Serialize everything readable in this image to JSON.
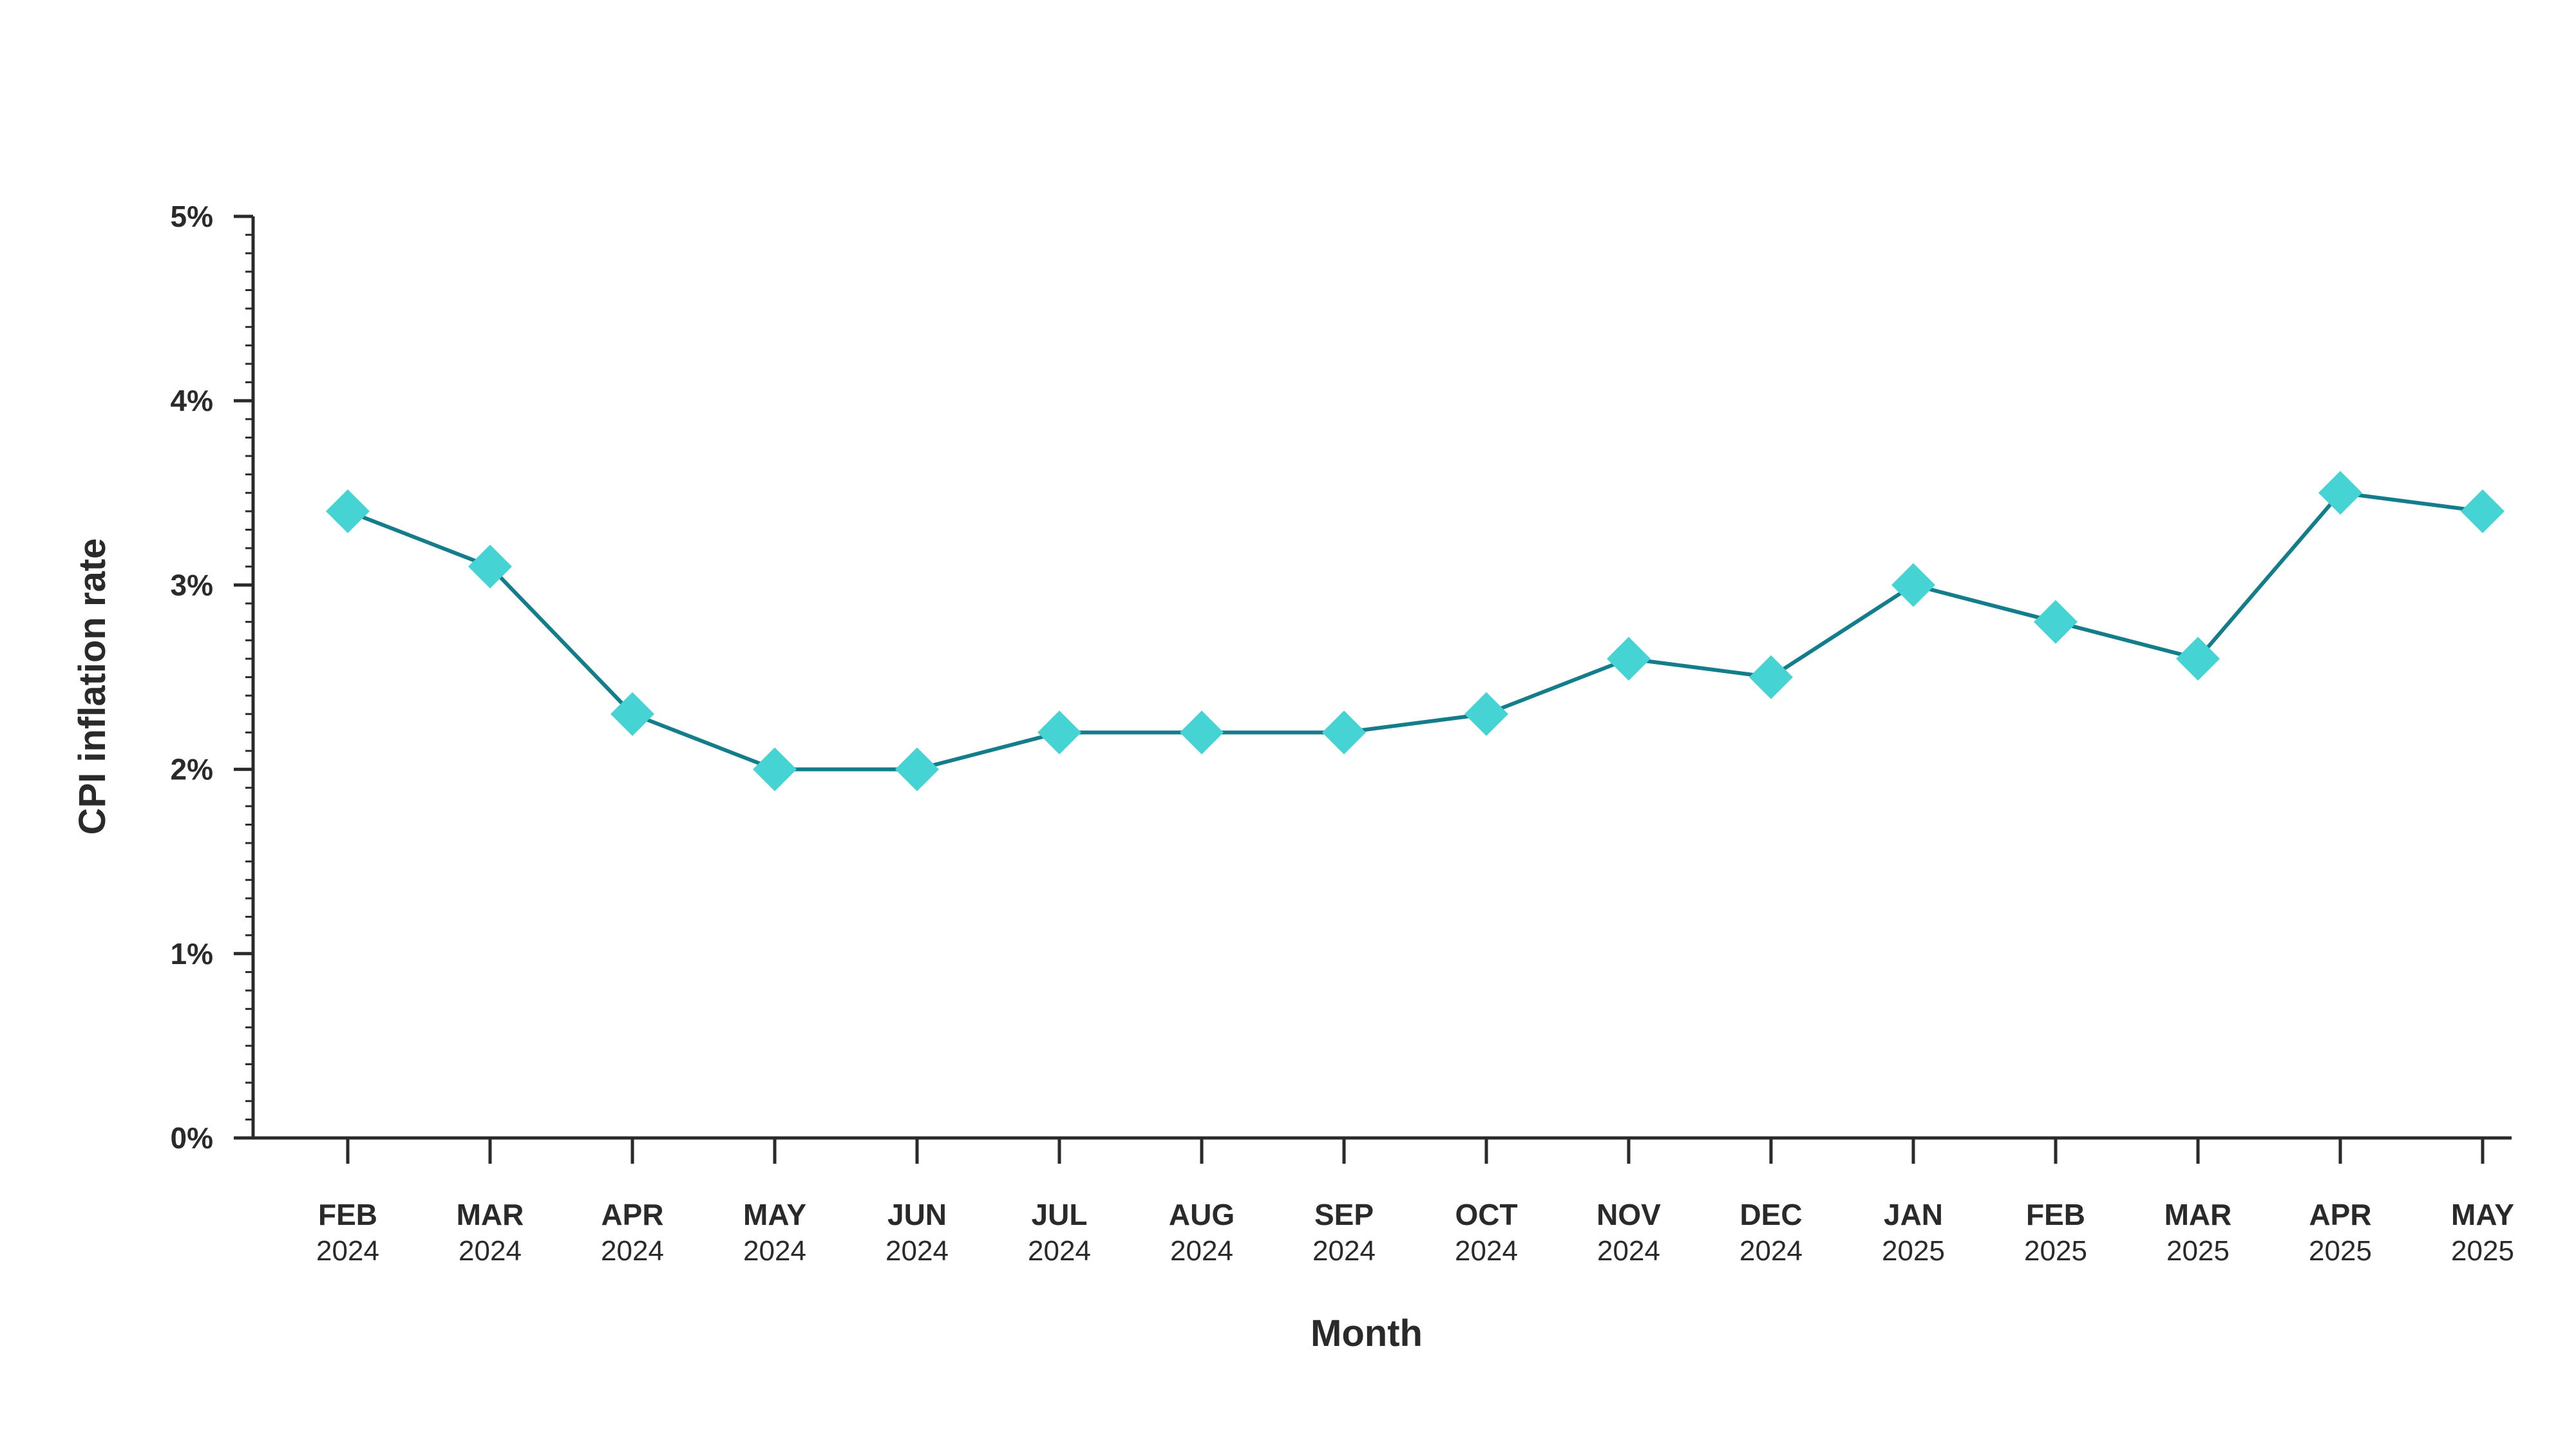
{
  "chart_data": {
    "type": "line",
    "title": "",
    "xlabel": "Month",
    "ylabel": "CPI inflation rate",
    "categories": [
      {
        "month": "FEB",
        "year": "2024"
      },
      {
        "month": "MAR",
        "year": "2024"
      },
      {
        "month": "APR",
        "year": "2024"
      },
      {
        "month": "MAY",
        "year": "2024"
      },
      {
        "month": "JUN",
        "year": "2024"
      },
      {
        "month": "JUL",
        "year": "2024"
      },
      {
        "month": "AUG",
        "year": "2024"
      },
      {
        "month": "SEP",
        "year": "2024"
      },
      {
        "month": "OCT",
        "year": "2024"
      },
      {
        "month": "NOV",
        "year": "2024"
      },
      {
        "month": "DEC",
        "year": "2024"
      },
      {
        "month": "JAN",
        "year": "2025"
      },
      {
        "month": "FEB",
        "year": "2025"
      },
      {
        "month": "MAR",
        "year": "2025"
      },
      {
        "month": "APR",
        "year": "2025"
      },
      {
        "month": "MAY",
        "year": "2025"
      }
    ],
    "series": [
      {
        "values": [
          3.4,
          3.1,
          2.3,
          2.0,
          2.0,
          2.2,
          2.2,
          2.2,
          2.3,
          2.6,
          2.5,
          3.0,
          2.8,
          2.6,
          3.5,
          3.4
        ],
        "line_color": "#137d8b",
        "marker_color": "#45d3d3",
        "marker": "diamond"
      }
    ],
    "ylim": [
      0,
      5
    ],
    "yticks": [
      {
        "value": 0,
        "label": "0%"
      },
      {
        "value": 1,
        "label": "1%"
      },
      {
        "value": 2,
        "label": "2%"
      },
      {
        "value": 3,
        "label": "3%"
      },
      {
        "value": 4,
        "label": "4%"
      },
      {
        "value": 5,
        "label": "5%"
      }
    ],
    "minor_tick_step": 0.1,
    "grid": false,
    "legend": "none",
    "axis_color": "#2a2a2a"
  }
}
